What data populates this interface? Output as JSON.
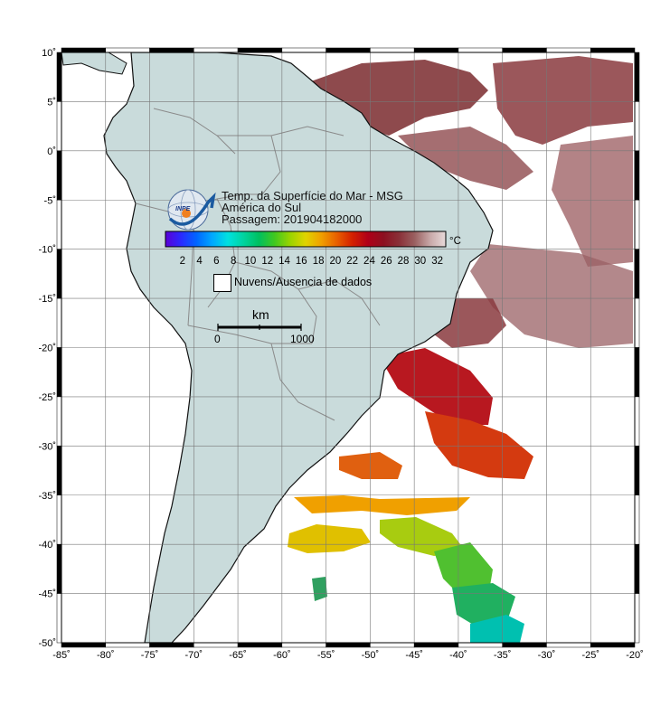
{
  "title": {
    "line1": "Temp. da Superfície do Mar - MSG",
    "line2": "América do Sul",
    "line3": "Passagem: 201904182000"
  },
  "logo": {
    "text": "INPE",
    "icon": "inpe-logo-icon"
  },
  "colorbar": {
    "unit": "°C",
    "min": 0,
    "max": 33,
    "ticks": [
      "2",
      "4",
      "6",
      "8",
      "10",
      "12",
      "14",
      "16",
      "18",
      "20",
      "22",
      "24",
      "26",
      "28",
      "30",
      "32"
    ],
    "stops": [
      "#5b00d6",
      "#2a2aff",
      "#0066ff",
      "#00a8ff",
      "#00e0e0",
      "#00d4a0",
      "#00c060",
      "#40c820",
      "#9ad400",
      "#e0d400",
      "#f0a000",
      "#e86000",
      "#d42000",
      "#b00018",
      "#8c1020",
      "#8a3038",
      "#9a6060",
      "#c8a8a8",
      "#e8dada"
    ]
  },
  "legend": {
    "label": "Nuvens/Ausencia de dados"
  },
  "scale_bar": {
    "unit": "km",
    "start": "0",
    "end": "1000"
  },
  "axes": {
    "lon_labels": [
      "-85˚",
      "-80˚",
      "-75˚",
      "-70˚",
      "-65˚",
      "-60˚",
      "-55˚",
      "-50˚",
      "-45˚",
      "-40˚",
      "-35˚",
      "-30˚",
      "-25˚",
      "-20˚"
    ],
    "lat_labels": [
      "10˚",
      "5˚",
      "0˚",
      "-5˚",
      "-10˚",
      "-15˚",
      "-20˚",
      "-25˚",
      "-30˚",
      "-35˚",
      "-40˚",
      "-45˚",
      "-50˚"
    ],
    "lon_range": [
      -85,
      -20
    ],
    "lat_range": [
      -50,
      10
    ]
  },
  "colors": {
    "land": "#c9dbdb",
    "ocean_nodata": "#ffffff",
    "grid": "#777777",
    "border": "#888888"
  }
}
